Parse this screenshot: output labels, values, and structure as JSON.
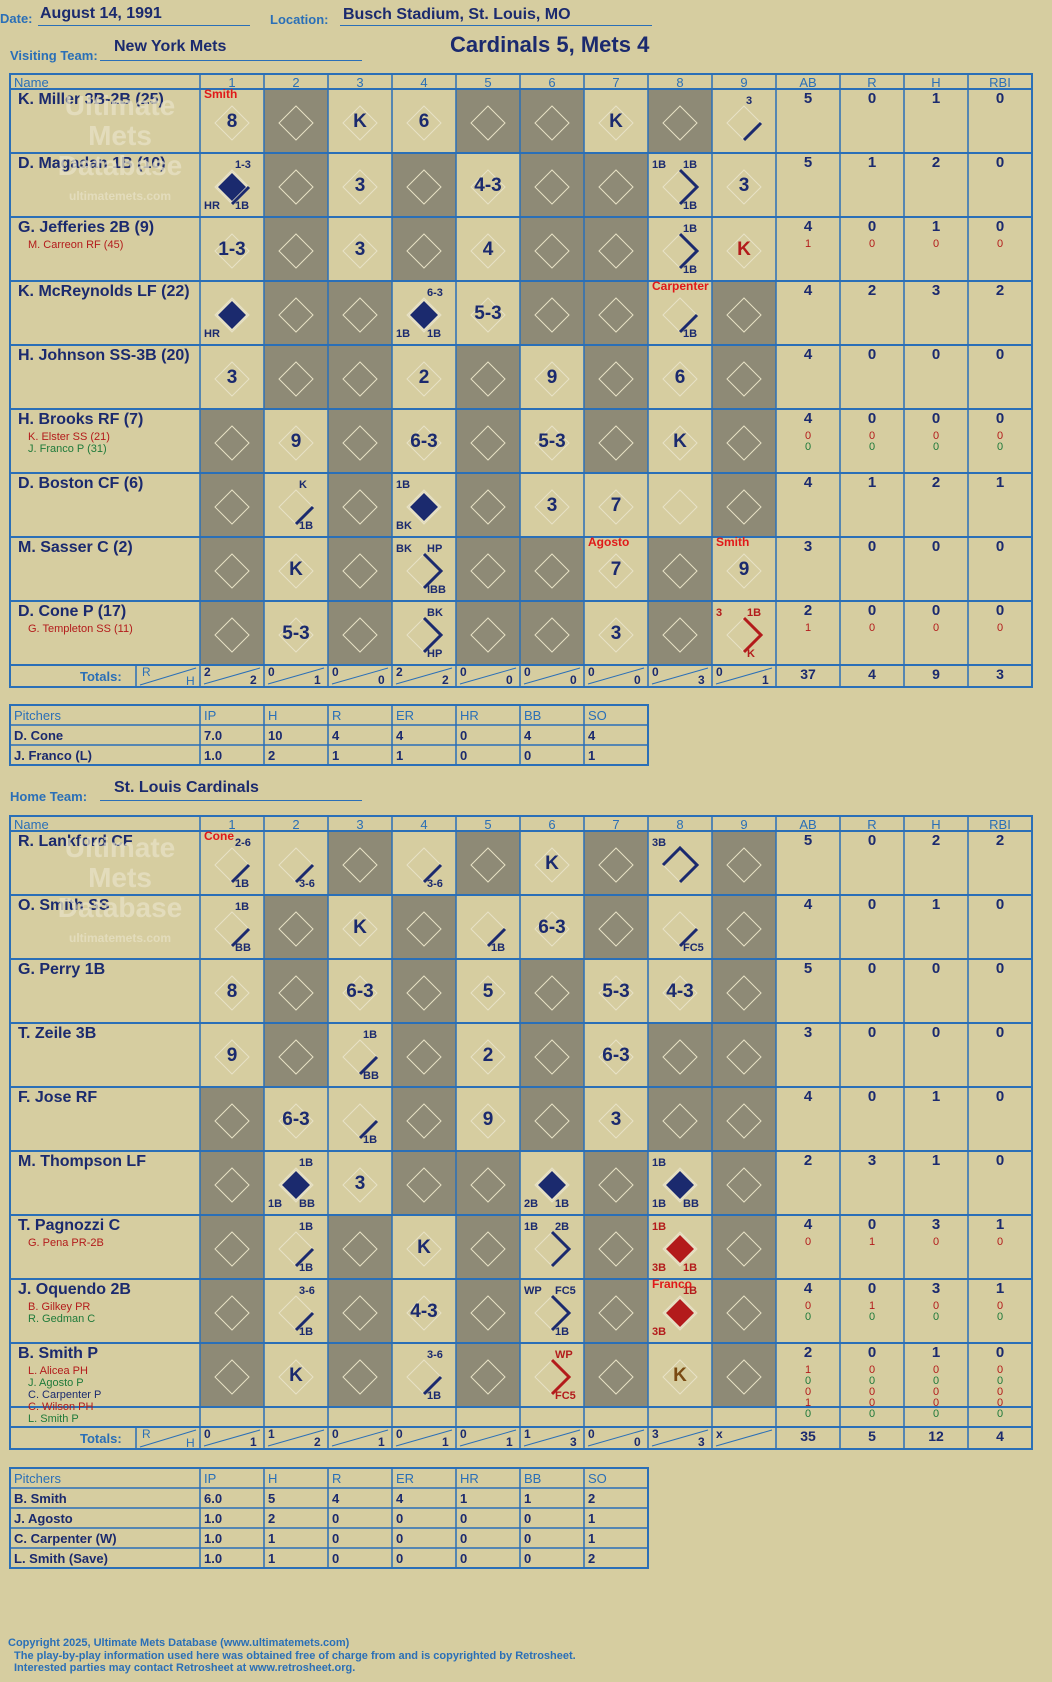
{
  "header": {
    "date_label": "Date:",
    "date": "August 14, 1991",
    "location_label": "Location:",
    "location": "Busch Stadium, St. Louis, MO",
    "visiting_label": "Visiting Team:",
    "visiting_team": "New York Mets",
    "score_title": "Cardinals 5, Mets 4",
    "home_label": "Home Team:",
    "home_team": "St. Louis Cardinals"
  },
  "columns": {
    "name": "Name",
    "innings": [
      "1",
      "2",
      "3",
      "4",
      "5",
      "6",
      "7",
      "8",
      "9"
    ],
    "stats": [
      "AB",
      "R",
      "H",
      "RBI"
    ]
  },
  "totals_label": "Totals:",
  "rh_labels": [
    "R",
    "H"
  ],
  "watermark": [
    "Ultimate",
    "Mets",
    "Database",
    "ultimatemets.com"
  ],
  "visitors": {
    "batters": [
      {
        "name": "K. Miller 3B-2B (25)",
        "subs": [],
        "stats": [
          "5",
          "0",
          "1",
          "0"
        ],
        "substats": []
      },
      {
        "name": "D. Magadan 1B (10)",
        "subs": [],
        "stats": [
          "5",
          "1",
          "2",
          "0"
        ],
        "substats": []
      },
      {
        "name": "G. Jefferies 2B (9)",
        "subs": [
          {
            "text": "M. Carreon RF (45)",
            "color": "red"
          }
        ],
        "stats": [
          "4",
          "0",
          "1",
          "0"
        ],
        "substats": [
          [
            "1",
            "0",
            "0",
            "0"
          ]
        ]
      },
      {
        "name": "K. McReynolds LF (22)",
        "subs": [],
        "stats": [
          "4",
          "2",
          "3",
          "2"
        ],
        "substats": []
      },
      {
        "name": "H. Johnson SS-3B (20)",
        "subs": [],
        "stats": [
          "4",
          "0",
          "0",
          "0"
        ],
        "substats": []
      },
      {
        "name": "H. Brooks RF (7)",
        "subs": [
          {
            "text": "K. Elster SS (21)",
            "color": "red"
          },
          {
            "text": "J. Franco P (31)",
            "color": "grn"
          }
        ],
        "stats": [
          "4",
          "0",
          "0",
          "0"
        ],
        "substats": [
          [
            "0",
            "0",
            "0",
            "0"
          ],
          [
            "0",
            "0",
            "0",
            "0"
          ]
        ]
      },
      {
        "name": "D. Boston CF (6)",
        "subs": [],
        "stats": [
          "4",
          "1",
          "2",
          "1"
        ],
        "substats": []
      },
      {
        "name": "M. Sasser C (2)",
        "subs": [],
        "stats": [
          "3",
          "0",
          "0",
          "0"
        ],
        "substats": []
      },
      {
        "name": "D. Cone P (17)",
        "subs": [
          {
            "text": "G. Templeton SS (11)",
            "color": "red"
          }
        ],
        "stats": [
          "2",
          "0",
          "0",
          "0"
        ],
        "substats": [
          [
            "1",
            "0",
            "0",
            "0"
          ]
        ]
      }
    ],
    "inning_totals": [
      [
        "2",
        "2"
      ],
      [
        "0",
        "1"
      ],
      [
        "0",
        "0"
      ],
      [
        "2",
        "2"
      ],
      [
        "0",
        "0"
      ],
      [
        "0",
        "0"
      ],
      [
        "0",
        "0"
      ],
      [
        "0",
        "3"
      ],
      [
        "0",
        "1"
      ]
    ],
    "game_totals": [
      "37",
      "4",
      "9",
      "3"
    ],
    "notes": [
      {
        "text": "Smith",
        "row": 0,
        "col": 0
      },
      {
        "text": "Carpenter",
        "row": 3,
        "col": 7
      },
      {
        "text": "Agosto",
        "row": 7,
        "col": 6
      },
      {
        "text": "Smith",
        "row": 7,
        "col": 8
      }
    ],
    "pitchers_header": [
      "Pitchers",
      "IP",
      "H",
      "R",
      "ER",
      "HR",
      "BB",
      "SO"
    ],
    "pitchers": [
      [
        "D. Cone",
        "7.0",
        "10",
        "4",
        "4",
        "0",
        "4",
        "4"
      ],
      [
        "J. Franco (L)",
        "1.0",
        "2",
        "1",
        "1",
        "0",
        "0",
        "1"
      ]
    ]
  },
  "home": {
    "batters": [
      {
        "name": "R. Lankford CF",
        "subs": [],
        "stats": [
          "5",
          "0",
          "2",
          "2"
        ],
        "substats": []
      },
      {
        "name": "O. Smith SS",
        "subs": [],
        "stats": [
          "4",
          "0",
          "1",
          "0"
        ],
        "substats": []
      },
      {
        "name": "G. Perry 1B",
        "subs": [],
        "stats": [
          "5",
          "0",
          "0",
          "0"
        ],
        "substats": []
      },
      {
        "name": "T. Zeile 3B",
        "subs": [],
        "stats": [
          "3",
          "0",
          "0",
          "0"
        ],
        "substats": []
      },
      {
        "name": "F. Jose RF",
        "subs": [],
        "stats": [
          "4",
          "0",
          "1",
          "0"
        ],
        "substats": []
      },
      {
        "name": "M. Thompson LF",
        "subs": [],
        "stats": [
          "2",
          "3",
          "1",
          "0"
        ],
        "substats": []
      },
      {
        "name": "T. Pagnozzi C",
        "subs": [
          {
            "text": "G. Pena PR-2B",
            "color": "red"
          }
        ],
        "stats": [
          "4",
          "0",
          "3",
          "1"
        ],
        "substats": [
          [
            "0",
            "1",
            "0",
            "0"
          ]
        ]
      },
      {
        "name": "J. Oquendo 2B",
        "subs": [
          {
            "text": "B. Gilkey PR",
            "color": "red"
          },
          {
            "text": "R. Gedman C",
            "color": "grn"
          }
        ],
        "stats": [
          "4",
          "0",
          "3",
          "1"
        ],
        "substats": [
          [
            "0",
            "1",
            "0",
            "0"
          ],
          [
            "0",
            "0",
            "0",
            "0"
          ]
        ]
      },
      {
        "name": "B. Smith P",
        "subs": [
          {
            "text": "L. Alicea PH",
            "color": "red"
          },
          {
            "text": "J. Agosto P",
            "color": "grn"
          },
          {
            "text": "C. Carpenter P",
            "color": "blu"
          },
          {
            "text": "C. Wilson PH",
            "color": "red"
          },
          {
            "text": "L. Smith P",
            "color": "grn"
          }
        ],
        "stats": [
          "2",
          "0",
          "1",
          "0"
        ],
        "substats": [
          [
            "1",
            "0",
            "0",
            "0"
          ],
          [
            "0",
            "0",
            "0",
            "0"
          ],
          [
            "0",
            "0",
            "0",
            "0"
          ],
          [
            "1",
            "0",
            "0",
            "0"
          ],
          [
            "0",
            "0",
            "0",
            "0"
          ]
        ]
      }
    ],
    "inning_totals": [
      [
        "0",
        "1"
      ],
      [
        "1",
        "2"
      ],
      [
        "0",
        "1"
      ],
      [
        "0",
        "1"
      ],
      [
        "0",
        "1"
      ],
      [
        "1",
        "3"
      ],
      [
        "0",
        "0"
      ],
      [
        "3",
        "3"
      ],
      [
        "x",
        ""
      ]
    ],
    "game_totals": [
      "35",
      "5",
      "12",
      "4"
    ],
    "notes": [
      {
        "text": "Cone",
        "row": 0,
        "col": 0
      },
      {
        "text": "Franco",
        "row": 7,
        "col": 7
      }
    ],
    "pitchers_header": [
      "Pitchers",
      "IP",
      "H",
      "R",
      "ER",
      "HR",
      "BB",
      "SO"
    ],
    "pitchers": [
      [
        "B. Smith",
        "6.0",
        "5",
        "4",
        "4",
        "1",
        "1",
        "2"
      ],
      [
        "J. Agosto",
        "1.0",
        "2",
        "0",
        "0",
        "0",
        "0",
        "1"
      ],
      [
        "C. Carpenter (W)",
        "1.0",
        "1",
        "0",
        "0",
        "0",
        "0",
        "1"
      ],
      [
        "L. Smith (Save)",
        "1.0",
        "1",
        "0",
        "0",
        "0",
        "0",
        "2"
      ]
    ]
  },
  "plays": {
    "visitors": [
      [
        {
          "t": "8"
        },
        null,
        {
          "t": "K"
        },
        {
          "t": "6"
        },
        null,
        null,
        {
          "t": "K"
        },
        null,
        {
          "t": "",
          "lines": "1B",
          "corner": "3"
        }
      ],
      [
        {
          "t": "",
          "score": true,
          "lines": "1B",
          "tr": "1-3",
          "bl": "HR",
          "br": "1B"
        },
        null,
        {
          "t": "3"
        },
        null,
        {
          "t": "4-3"
        },
        null,
        null,
        {
          "t": "",
          "lines": "1B-2",
          "tl": "1B",
          "tr": "1B",
          "br": "1B"
        },
        {
          "t": "3"
        }
      ],
      [
        {
          "t": "1-3"
        },
        null,
        {
          "t": "3"
        },
        null,
        {
          "t": "4"
        },
        null,
        null,
        {
          "t": "",
          "lines": "1B-2",
          "tr": "1B",
          "br": "1B"
        },
        {
          "t": "K",
          "red": true
        }
      ],
      [
        {
          "t": "",
          "score": true,
          "bl": "HR"
        },
        null,
        null,
        {
          "t": "",
          "score": true,
          "tr": "6-3",
          "bl": "1B",
          "br": "1B"
        },
        {
          "t": "5-3"
        },
        null,
        null,
        {
          "t": "",
          "lines": "1B",
          "br": "1B"
        },
        null
      ],
      [
        {
          "t": "3"
        },
        null,
        null,
        {
          "t": "2"
        },
        null,
        {
          "t": "9"
        },
        null,
        {
          "t": "6"
        },
        null
      ],
      [
        null,
        {
          "t": "9"
        },
        null,
        {
          "t": "6-3"
        },
        null,
        {
          "t": "5-3"
        },
        null,
        {
          "t": "K"
        },
        null
      ],
      [
        null,
        {
          "t": "",
          "lines": "1B",
          "tr": "K",
          "br": "1B"
        },
        null,
        {
          "t": "",
          "score": true,
          "tl": "1B",
          "bl": "BK"
        },
        null,
        {
          "t": "3"
        },
        {
          "t": "7"
        },
        null,
        null
      ],
      [
        null,
        {
          "t": "K"
        },
        null,
        {
          "t": "",
          "lines": "1B-2",
          "tl": "BK",
          "tr": "HP",
          "br": "IBB"
        },
        null,
        null,
        {
          "t": "7"
        },
        null,
        {
          "t": "9"
        }
      ],
      [
        null,
        {
          "t": "5-3"
        },
        null,
        {
          "t": "",
          "lines": "1B-2",
          "tr": "BK",
          "br": "HP"
        },
        null,
        null,
        {
          "t": "3"
        },
        null,
        {
          "t": "",
          "red": true,
          "lines": "1B-2",
          "tl": "3",
          "tr": "1B",
          "br": "K"
        }
      ]
    ],
    "home": [
      [
        {
          "t": "",
          "lines": "1B",
          "tr": "2-6",
          "br": "1B"
        },
        {
          "t": "",
          "lines": "1B",
          "br": "3-6"
        },
        null,
        {
          "t": "",
          "lines": "1B",
          "br": "3-6"
        },
        null,
        {
          "t": "K"
        },
        null,
        {
          "t": "",
          "lines": "3B",
          "tl": "3B"
        },
        null
      ],
      [
        {
          "t": "",
          "lines": "1B",
          "tr": "1B",
          "br": "BB"
        },
        null,
        {
          "t": "K"
        },
        null,
        {
          "t": "",
          "lines": "1B",
          "br": "1B"
        },
        {
          "t": "6-3"
        },
        null,
        {
          "t": "",
          "lines": "1B",
          "br": "FC5"
        },
        null
      ],
      [
        {
          "t": "8"
        },
        null,
        {
          "t": "6-3"
        },
        null,
        {
          "t": "5"
        },
        null,
        {
          "t": "5-3"
        },
        {
          "t": "4-3"
        },
        null
      ],
      [
        {
          "t": "9"
        },
        null,
        {
          "t": "",
          "lines": "1B",
          "tr": "1B",
          "br": "BB"
        },
        null,
        {
          "t": "2"
        },
        null,
        {
          "t": "6-3"
        },
        null,
        null
      ],
      [
        null,
        {
          "t": "6-3"
        },
        {
          "t": "",
          "lines": "1B",
          "br": "1B"
        },
        null,
        {
          "t": "9"
        },
        null,
        {
          "t": "3"
        },
        null,
        null
      ],
      [
        null,
        {
          "t": "",
          "score": true,
          "tr": "1B",
          "bl": "1B",
          "br": "BB"
        },
        {
          "t": "3"
        },
        null,
        null,
        {
          "t": "",
          "score": true,
          "bl": "2B",
          "br": "1B"
        },
        null,
        {
          "t": "",
          "score": true,
          "tl": "1B",
          "bl": "1B",
          "br": "BB"
        },
        null
      ],
      [
        null,
        {
          "t": "",
          "lines": "1B",
          "tr": "1B",
          "br": "1B"
        },
        null,
        {
          "t": "K"
        },
        null,
        {
          "t": "",
          "lines": "2B",
          "tl": "1B",
          "tr": "2B"
        },
        null,
        {
          "t": "",
          "score": true,
          "red": true,
          "tl": "1B",
          "bl": "3B",
          "br": "1B"
        },
        null
      ],
      [
        null,
        {
          "t": "",
          "lines": "1B",
          "tr": "3-6",
          "br": "1B"
        },
        null,
        {
          "t": "4-3"
        },
        null,
        {
          "t": "",
          "lines": "1B-2",
          "tl": "WP",
          "tr": "FC5",
          "br": "1B"
        },
        null,
        {
          "t": "",
          "score": true,
          "red": true,
          "tr": "1B",
          "bl": "3B"
        },
        null
      ],
      [
        null,
        {
          "t": "K"
        },
        null,
        {
          "t": "",
          "lines": "1B",
          "tr": "3-6",
          "br": "1B"
        },
        null,
        {
          "t": "",
          "red": true,
          "lines": "1B-2",
          "tr": "WP",
          "br": "FC5"
        },
        null,
        {
          "t": "K",
          "brown": true
        },
        null
      ]
    ]
  },
  "shade": {
    "visitors": [
      [
        false,
        true,
        false,
        false,
        true,
        true,
        false,
        true,
        false
      ],
      [
        false,
        true,
        false,
        true,
        false,
        true,
        true,
        false,
        false
      ],
      [
        false,
        true,
        false,
        true,
        false,
        true,
        true,
        false,
        false
      ],
      [
        false,
        true,
        true,
        false,
        false,
        true,
        true,
        false,
        true
      ],
      [
        false,
        true,
        true,
        false,
        true,
        false,
        true,
        false,
        true
      ],
      [
        true,
        false,
        true,
        false,
        true,
        false,
        true,
        false,
        true
      ],
      [
        true,
        false,
        true,
        false,
        true,
        false,
        false,
        false,
        true
      ],
      [
        true,
        false,
        true,
        false,
        true,
        true,
        false,
        true,
        false
      ],
      [
        true,
        false,
        true,
        false,
        true,
        true,
        false,
        true,
        false
      ]
    ],
    "home": [
      [
        false,
        false,
        true,
        false,
        true,
        false,
        true,
        false,
        true
      ],
      [
        false,
        true,
        false,
        true,
        false,
        false,
        true,
        false,
        true
      ],
      [
        false,
        true,
        false,
        true,
        false,
        true,
        false,
        false,
        true
      ],
      [
        false,
        true,
        false,
        true,
        false,
        true,
        false,
        true,
        true
      ],
      [
        true,
        false,
        false,
        true,
        false,
        true,
        false,
        true,
        true
      ],
      [
        true,
        false,
        false,
        true,
        true,
        false,
        true,
        false,
        true
      ],
      [
        true,
        false,
        true,
        false,
        true,
        false,
        true,
        false,
        true
      ],
      [
        true,
        false,
        true,
        false,
        true,
        false,
        true,
        false,
        true
      ],
      [
        true,
        false,
        true,
        false,
        true,
        false,
        true,
        false,
        true
      ]
    ]
  },
  "footer": {
    "line1": "Copyright 2025, Ultimate Mets Database (www.ultimatemets.com)",
    "line2": "The play-by-play information used here was obtained free of charge from and is copyrighted by Retrosheet.",
    "line3": "Interested parties may contact Retrosheet at www.retrosheet.org."
  },
  "colors": {
    "bg": "#d6cda0",
    "grid": "#2a6fb7",
    "shade": "#8e8a76",
    "navy": "#1b2a6e",
    "red": "#b31b1b",
    "green": "#1f7a3a"
  }
}
